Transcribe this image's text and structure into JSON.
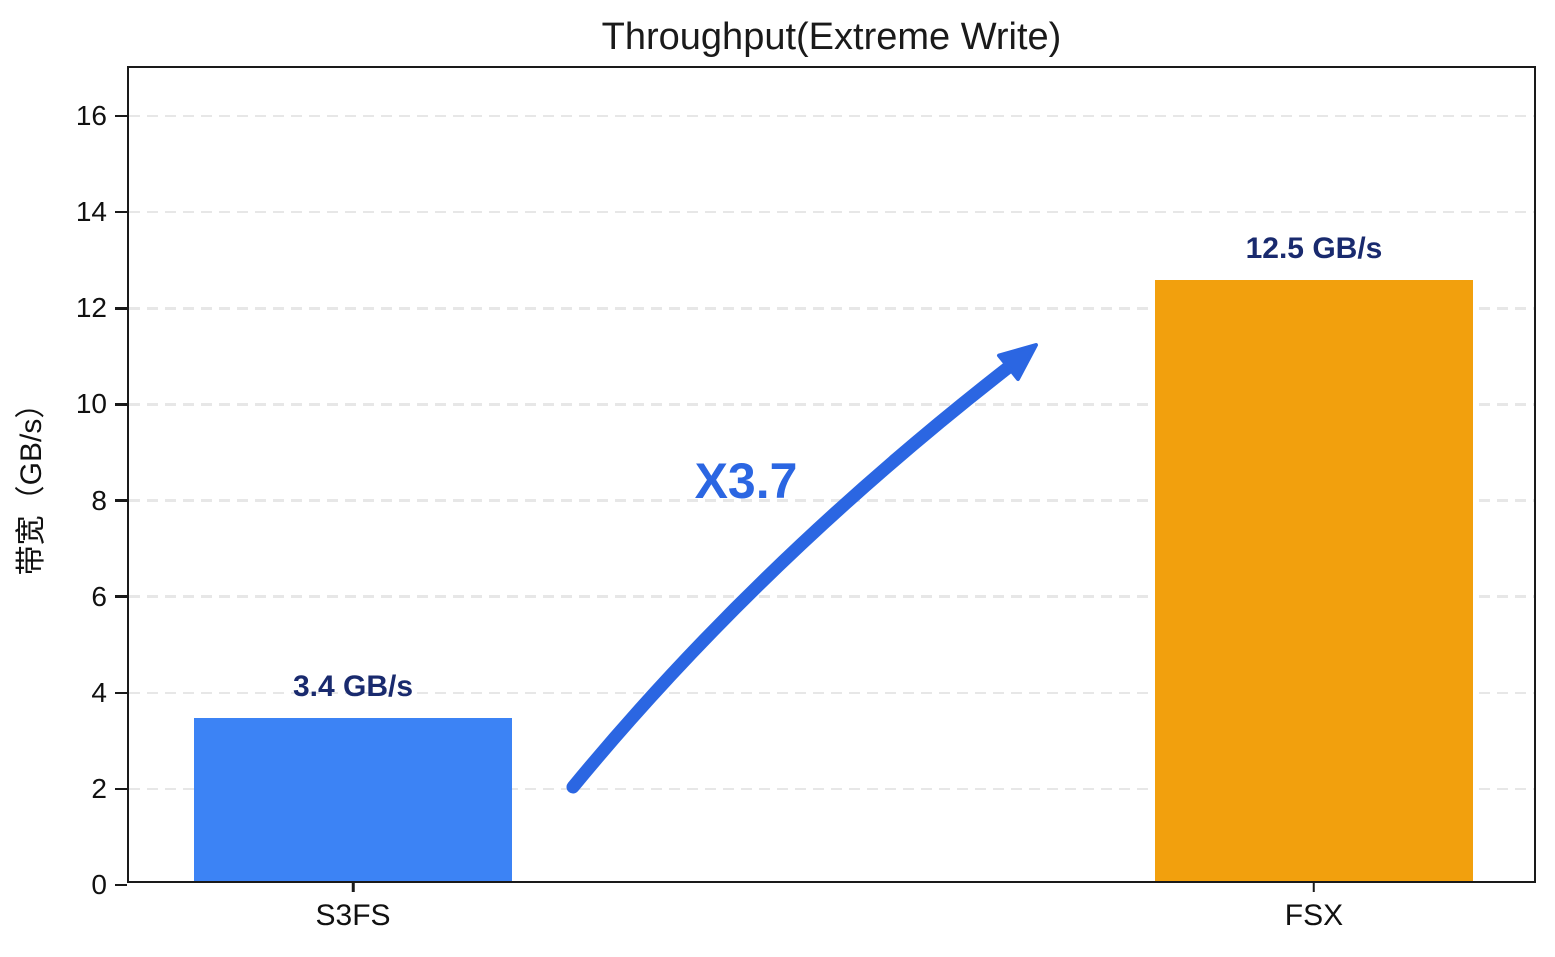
{
  "chart_data": {
    "type": "bar",
    "title": "Throughput(Extreme Write)",
    "categories": [
      "S3FS",
      "FSX"
    ],
    "values": [
      3.4,
      12.5
    ],
    "bar_labels": [
      "3.4 GB/s",
      "12.5 GB/s"
    ],
    "bar_colors": [
      "#3C83F5",
      "#F2A00D"
    ],
    "xlabel": "",
    "ylabel": "带宽（GB/s）",
    "ylim": [
      0,
      17
    ],
    "yticks": [
      0,
      2,
      4,
      6,
      8,
      10,
      12,
      14,
      16
    ],
    "grid": "horizontal-dashed",
    "gridline_color": "#e7e7e7",
    "legend": "none",
    "label_color": "#192A6E",
    "annotation": {
      "text": "X3.7",
      "color": "#2B66E2",
      "meaning": "FSX is 3.7x faster than S3FS"
    }
  }
}
